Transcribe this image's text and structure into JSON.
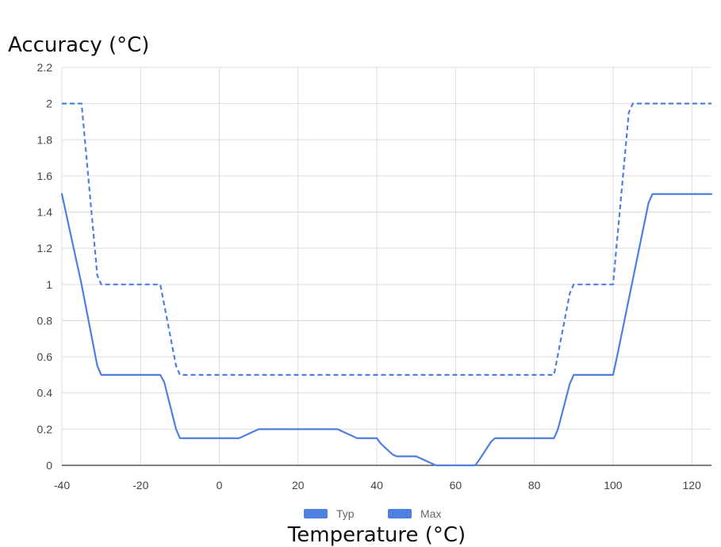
{
  "chart_data": {
    "type": "line",
    "title": "Accuracy (°C)",
    "xlabel": "Temperature (°C)",
    "ylabel": "",
    "xlim": [
      -40,
      125
    ],
    "ylim": [
      0,
      2.2
    ],
    "x_ticks": [
      -40,
      -20,
      0,
      20,
      40,
      60,
      80,
      100,
      120
    ],
    "y_ticks": [
      0,
      0.2,
      0.4,
      0.6,
      0.8,
      1,
      1.2,
      1.4,
      1.6,
      1.8,
      2,
      2.2
    ],
    "y_tick_labels": [
      "0",
      "0.2",
      "0.4",
      "0.6",
      "0.8",
      "1",
      "1.2",
      "1.4",
      "1.6",
      "1.8",
      "2",
      "2.2"
    ],
    "grid": true,
    "legend_position": "bottom",
    "colors": {
      "line": "#4f7fe0",
      "grid": "#dddddd",
      "axis": "#333333"
    },
    "series": [
      {
        "name": "Typ",
        "style": "solid",
        "x": [
          -40,
          -35,
          -31,
          -30,
          -15,
          -14,
          -11,
          -10,
          5,
          6,
          9,
          10,
          30,
          31,
          34,
          35,
          40,
          41,
          44,
          45,
          50,
          51,
          54,
          55,
          65,
          66,
          69,
          70,
          85,
          86,
          89,
          90,
          100,
          101,
          109,
          110,
          125
        ],
        "y": [
          1.5,
          1.0,
          0.55,
          0.5,
          0.5,
          0.46,
          0.2,
          0.15,
          0.15,
          0.16,
          0.19,
          0.2,
          0.2,
          0.19,
          0.16,
          0.15,
          0.15,
          0.12,
          0.06,
          0.05,
          0.05,
          0.04,
          0.01,
          0,
          0,
          0.03,
          0.13,
          0.15,
          0.15,
          0.2,
          0.45,
          0.5,
          0.5,
          0.6,
          1.45,
          1.5,
          1.5
        ]
      },
      {
        "name": "Max",
        "style": "dashed",
        "x": [
          -40,
          -35,
          -31,
          -30,
          -15,
          -11,
          -10,
          85,
          89,
          90,
          100,
          104,
          105,
          125
        ],
        "y": [
          2.0,
          2.0,
          1.05,
          1.0,
          1.0,
          0.55,
          0.5,
          0.5,
          0.95,
          1.0,
          1.0,
          1.95,
          2.0,
          2.0
        ]
      }
    ]
  }
}
